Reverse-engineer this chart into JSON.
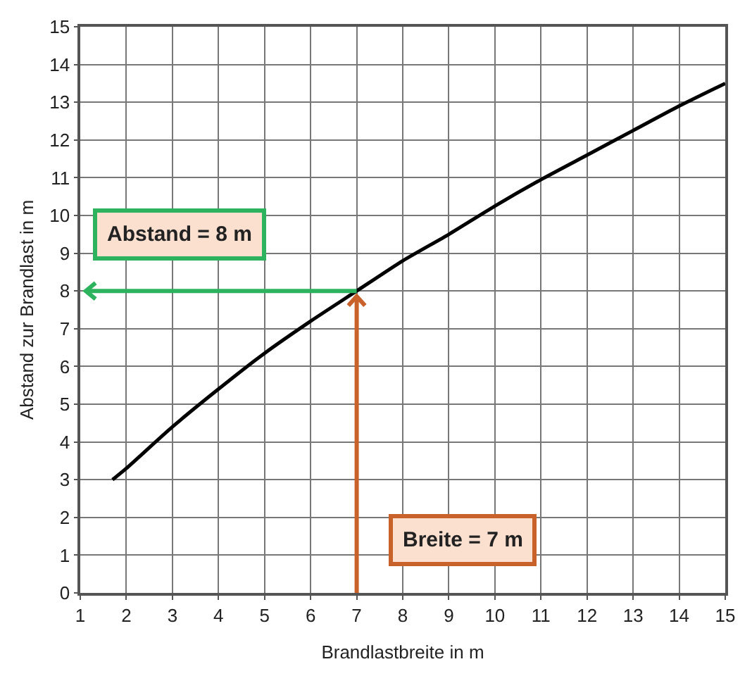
{
  "chart_data": {
    "type": "line",
    "xlabel": "Brandlastbreite in m",
    "ylabel": "Abstand zur Brandlast in m",
    "series": [
      {
        "color": "#000000",
        "x": [
          1.7,
          2,
          3,
          4,
          5,
          6,
          7,
          8,
          9,
          10,
          11,
          12,
          13,
          14,
          15
        ],
        "values": [
          3.0,
          3.3,
          4.4,
          5.4,
          6.35,
          7.2,
          8.0,
          8.8,
          9.5,
          10.25,
          10.95,
          11.6,
          12.25,
          12.9,
          13.5
        ]
      }
    ],
    "xlim": [
      1,
      15
    ],
    "xticks": [
      1,
      2,
      3,
      4,
      5,
      6,
      7,
      8,
      9,
      10,
      11,
      12,
      13,
      14,
      15
    ],
    "ylim": [
      0,
      15
    ],
    "yticks": [
      0,
      1,
      2,
      3,
      4,
      5,
      6,
      7,
      8,
      9,
      10,
      11,
      12,
      13,
      14,
      15
    ],
    "grid": true,
    "marker": "none",
    "line_style": "solid",
    "ref_lines": [
      {
        "axis": "y",
        "value": 8,
        "label": "Abstand = 8 m",
        "color": "#2db35d"
      },
      {
        "axis": "x",
        "value": 7,
        "label": "Breite = 7 m",
        "color": "#c8622a"
      }
    ]
  }
}
